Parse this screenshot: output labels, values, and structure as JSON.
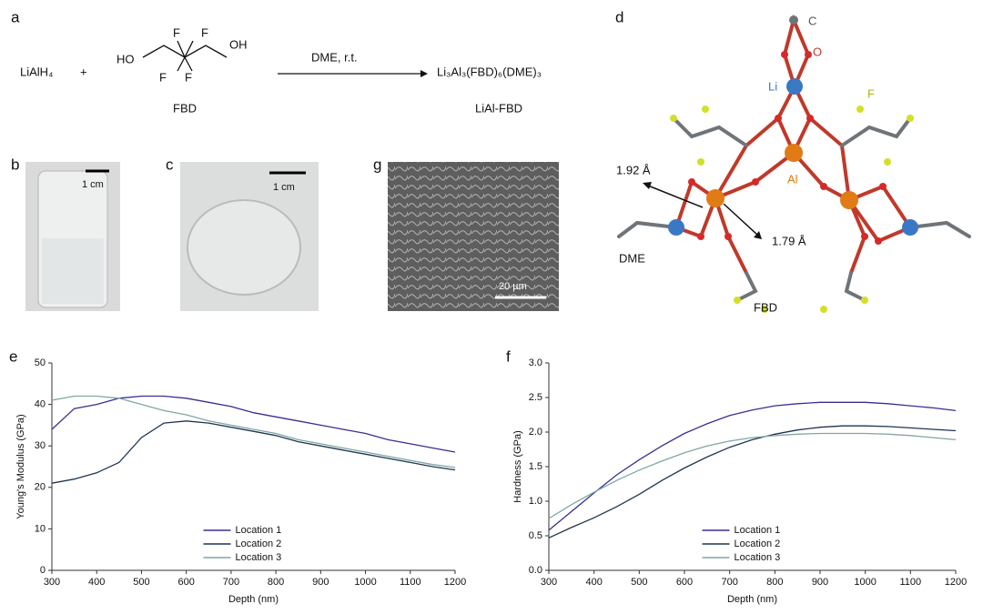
{
  "scheme": {
    "label": "a",
    "reactant": "LiAlH₄",
    "plus": "+",
    "hydroxyls": [
      "HO",
      "OH"
    ],
    "fluorines": [
      "F",
      "F",
      "F",
      "F"
    ],
    "reactant2": "FBD",
    "conditions": "DME, r.t.",
    "product": "Li₃Al₃(FBD)₆(DME)₃",
    "product_name": "LiAl-FBD"
  },
  "photos": [
    {
      "label": "b",
      "scale": "1 cm"
    },
    {
      "label": "c",
      "scale": "1 cm"
    },
    {
      "label": "g",
      "scale": "20 µm"
    }
  ],
  "structure": {
    "label": "d",
    "atoms": [
      "C",
      "O",
      "Li",
      "F",
      "Al"
    ],
    "distances": [
      "1.92 Å",
      "1.79 Å"
    ],
    "ligands": [
      "DME",
      "FBD"
    ]
  },
  "chart_data": [
    {
      "type": "line",
      "panel": "e",
      "xlabel": "Depth (nm)",
      "ylabel": "Young's Modulus (GPa)",
      "x": [
        300,
        350,
        400,
        450,
        500,
        550,
        600,
        650,
        700,
        750,
        800,
        850,
        900,
        950,
        1000,
        1050,
        1100,
        1150,
        1200
      ],
      "series": [
        {
          "name": "Location 1",
          "color": "#3b2f8f",
          "values": [
            34,
            39,
            40,
            41.5,
            42,
            42,
            41.5,
            40.5,
            39.5,
            38,
            37,
            36,
            35,
            34,
            33,
            31.5,
            30.5,
            29.5,
            28.5
          ]
        },
        {
          "name": "Location 2",
          "color": "#1f3550",
          "values": [
            21,
            22,
            23.5,
            26,
            32,
            35.5,
            36,
            35.5,
            34.5,
            33.5,
            32.5,
            31,
            30,
            29,
            28,
            27,
            26,
            25,
            24.2
          ]
        },
        {
          "name": "Location 3",
          "color": "#7fa7a3",
          "values": [
            41,
            42,
            42,
            41.5,
            40,
            38.5,
            37.5,
            36,
            35,
            34,
            33,
            31.5,
            30.5,
            29.5,
            28.5,
            27.5,
            26.5,
            25.5,
            24.8
          ]
        }
      ],
      "xlim": [
        300,
        1200
      ],
      "xticks": [
        300,
        400,
        500,
        600,
        700,
        800,
        900,
        1000,
        1100,
        1200
      ],
      "ylim": [
        0,
        50
      ],
      "yticks": [
        0,
        10,
        20,
        30,
        40,
        50
      ],
      "legend": "lower center"
    },
    {
      "type": "line",
      "panel": "f",
      "xlabel": "Depth (nm)",
      "ylabel": "Hardness (GPa)",
      "x": [
        300,
        350,
        400,
        450,
        500,
        550,
        600,
        650,
        700,
        750,
        800,
        850,
        900,
        950,
        1000,
        1050,
        1100,
        1150,
        1200
      ],
      "series": [
        {
          "name": "Location 1",
          "color": "#3b2f8f",
          "values": [
            0.58,
            0.85,
            1.12,
            1.38,
            1.6,
            1.8,
            1.98,
            2.12,
            2.24,
            2.32,
            2.38,
            2.41,
            2.43,
            2.43,
            2.43,
            2.41,
            2.38,
            2.35,
            2.31
          ]
        },
        {
          "name": "Location 2",
          "color": "#1f3550",
          "values": [
            0.47,
            0.62,
            0.76,
            0.92,
            1.1,
            1.3,
            1.48,
            1.64,
            1.78,
            1.89,
            1.97,
            2.03,
            2.07,
            2.09,
            2.09,
            2.08,
            2.06,
            2.04,
            2.02
          ]
        },
        {
          "name": "Location 3",
          "color": "#7fa7a3",
          "values": [
            0.75,
            0.95,
            1.13,
            1.3,
            1.45,
            1.58,
            1.7,
            1.8,
            1.87,
            1.92,
            1.95,
            1.97,
            1.98,
            1.98,
            1.98,
            1.97,
            1.95,
            1.92,
            1.89
          ]
        }
      ],
      "xlim": [
        300,
        1200
      ],
      "xticks": [
        300,
        400,
        500,
        600,
        700,
        800,
        900,
        1000,
        1100,
        1200
      ],
      "ylim": [
        0,
        3
      ],
      "yticks": [
        {
          "value": 0,
          "label": "0.0"
        },
        0.5,
        {
          "value": 1,
          "label": "1.0"
        },
        1.5,
        {
          "value": 2,
          "label": "2.0"
        },
        2.5,
        {
          "value": 3,
          "label": "3.0"
        }
      ],
      "legend": "lower center"
    }
  ]
}
